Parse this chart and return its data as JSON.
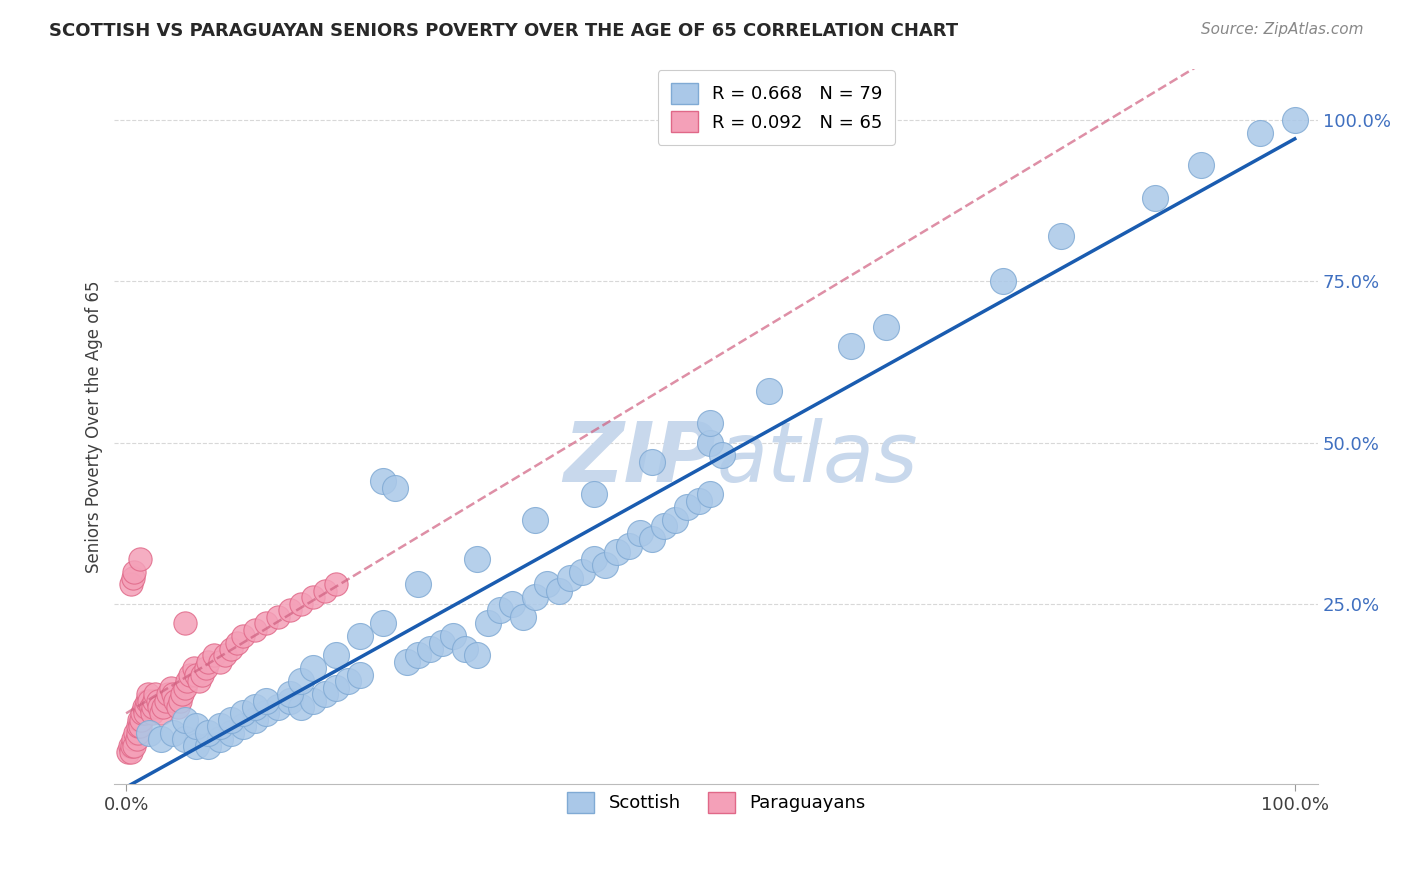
{
  "title": "SCOTTISH VS PARAGUAYAN SENIORS POVERTY OVER THE AGE OF 65 CORRELATION CHART",
  "source": "Source: ZipAtlas.com",
  "ylabel": "Seniors Poverty Over the Age of 65",
  "ytick_labels": [
    "25.0%",
    "50.0%",
    "75.0%",
    "100.0%"
  ],
  "ytick_values": [
    0.25,
    0.5,
    0.75,
    1.0
  ],
  "legend_scottish": "Scottish",
  "legend_paraguayans": "Paraguayans",
  "R_scottish": 0.668,
  "N_scottish": 79,
  "R_paraguayan": 0.092,
  "N_paraguayan": 65,
  "scottish_color": "#aac8e8",
  "scottish_edge": "#80aad4",
  "paraguayan_color": "#f4a0b8",
  "paraguayan_edge": "#e06888",
  "trendline_scottish_color": "#1a5cb0",
  "trendline_paraguayan_color": "#d06080",
  "watermark_color": "#c8d8ec",
  "grid_color": "#d8d8d8",
  "scottish_x": [
    0.02,
    0.03,
    0.04,
    0.05,
    0.06,
    0.07,
    0.08,
    0.09,
    0.1,
    0.11,
    0.12,
    0.13,
    0.14,
    0.15,
    0.16,
    0.17,
    0.18,
    0.19,
    0.2,
    0.22,
    0.23,
    0.24,
    0.25,
    0.26,
    0.27,
    0.28,
    0.29,
    0.3,
    0.31,
    0.32,
    0.33,
    0.34,
    0.35,
    0.36,
    0.37,
    0.38,
    0.39,
    0.4,
    0.41,
    0.42,
    0.43,
    0.44,
    0.45,
    0.46,
    0.47,
    0.48,
    0.49,
    0.5,
    0.5,
    0.51,
    0.05,
    0.06,
    0.07,
    0.08,
    0.09,
    0.1,
    0.11,
    0.12,
    0.14,
    0.15,
    0.16,
    0.18,
    0.2,
    0.22,
    0.25,
    0.3,
    0.35,
    0.4,
    0.45,
    0.5,
    0.55,
    0.62,
    0.65,
    0.75,
    0.8,
    0.88,
    0.92,
    0.97,
    1.0
  ],
  "scottish_y": [
    0.05,
    0.04,
    0.05,
    0.04,
    0.03,
    0.03,
    0.04,
    0.05,
    0.06,
    0.07,
    0.08,
    0.09,
    0.1,
    0.09,
    0.1,
    0.11,
    0.12,
    0.13,
    0.14,
    0.44,
    0.43,
    0.16,
    0.17,
    0.18,
    0.19,
    0.2,
    0.18,
    0.17,
    0.22,
    0.24,
    0.25,
    0.23,
    0.26,
    0.28,
    0.27,
    0.29,
    0.3,
    0.32,
    0.31,
    0.33,
    0.34,
    0.36,
    0.35,
    0.37,
    0.38,
    0.4,
    0.41,
    0.42,
    0.5,
    0.48,
    0.07,
    0.06,
    0.05,
    0.06,
    0.07,
    0.08,
    0.09,
    0.1,
    0.11,
    0.13,
    0.15,
    0.17,
    0.2,
    0.22,
    0.28,
    0.32,
    0.38,
    0.42,
    0.47,
    0.53,
    0.58,
    0.65,
    0.68,
    0.75,
    0.82,
    0.88,
    0.93,
    0.98,
    1.0
  ],
  "paraguayan_x": [
    0.002,
    0.003,
    0.004,
    0.005,
    0.006,
    0.007,
    0.008,
    0.009,
    0.01,
    0.01,
    0.011,
    0.012,
    0.013,
    0.014,
    0.015,
    0.016,
    0.017,
    0.018,
    0.019,
    0.02,
    0.021,
    0.022,
    0.023,
    0.024,
    0.025,
    0.027,
    0.028,
    0.03,
    0.032,
    0.034,
    0.036,
    0.038,
    0.04,
    0.042,
    0.044,
    0.046,
    0.048,
    0.05,
    0.052,
    0.055,
    0.058,
    0.06,
    0.062,
    0.065,
    0.068,
    0.07,
    0.075,
    0.08,
    0.085,
    0.09,
    0.095,
    0.1,
    0.11,
    0.12,
    0.13,
    0.14,
    0.15,
    0.16,
    0.17,
    0.18,
    0.004,
    0.006,
    0.007,
    0.012,
    0.05
  ],
  "paraguayan_y": [
    0.02,
    0.03,
    0.02,
    0.03,
    0.04,
    0.03,
    0.05,
    0.04,
    0.05,
    0.06,
    0.07,
    0.06,
    0.07,
    0.08,
    0.09,
    0.08,
    0.09,
    0.1,
    0.11,
    0.1,
    0.09,
    0.08,
    0.09,
    0.1,
    0.11,
    0.1,
    0.09,
    0.08,
    0.09,
    0.1,
    0.11,
    0.12,
    0.11,
    0.1,
    0.09,
    0.1,
    0.11,
    0.12,
    0.13,
    0.14,
    0.15,
    0.14,
    0.13,
    0.14,
    0.15,
    0.16,
    0.17,
    0.16,
    0.17,
    0.18,
    0.19,
    0.2,
    0.21,
    0.22,
    0.23,
    0.24,
    0.25,
    0.26,
    0.27,
    0.28,
    0.28,
    0.29,
    0.3,
    0.32,
    0.22
  ]
}
